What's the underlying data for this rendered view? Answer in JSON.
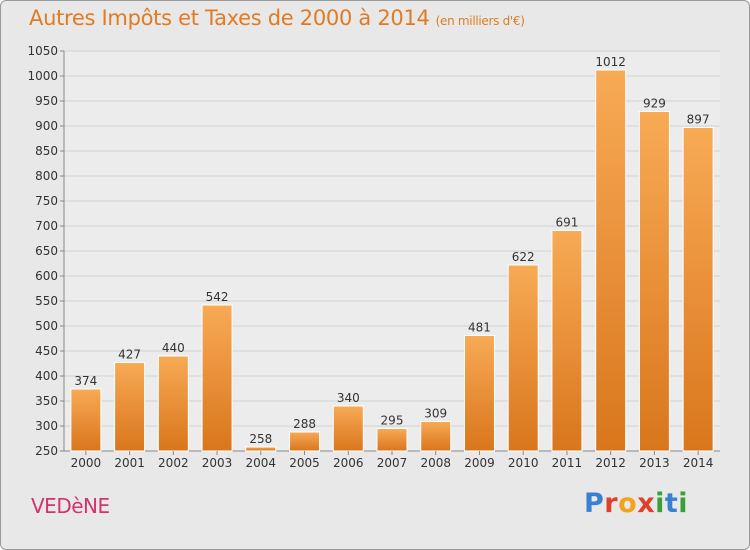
{
  "title": "Autres Impôts et Taxes de 2000 à 2014",
  "unit_label": "(en milliers d'€)",
  "place": "VEDèNE",
  "logo": {
    "letters": [
      "P",
      "r",
      "o",
      "x",
      "i",
      "t",
      "i"
    ],
    "colors": [
      "#3a7fd0",
      "#e0402a",
      "#f2a21c",
      "#e0402a",
      "#3a9f3a",
      "#3a7fd0",
      "#3a9f3a"
    ]
  },
  "colors": {
    "bar_light": "#f8aa55",
    "bar_dark": "#d9761c",
    "title": "#e07b24",
    "place": "#d4346e"
  },
  "chart_data": {
    "type": "bar",
    "categories": [
      "2000",
      "2001",
      "2002",
      "2003",
      "2004",
      "2005",
      "2006",
      "2007",
      "2008",
      "2009",
      "2010",
      "2011",
      "2012",
      "2013",
      "2014"
    ],
    "values": [
      374,
      427,
      440,
      542,
      258,
      288,
      340,
      295,
      309,
      481,
      622,
      691,
      1012,
      929,
      897
    ],
    "ylim": [
      250,
      1050
    ],
    "yticks": [
      250,
      300,
      350,
      400,
      450,
      500,
      550,
      600,
      650,
      700,
      750,
      800,
      850,
      900,
      950,
      1000,
      1050
    ],
    "grid": true
  }
}
